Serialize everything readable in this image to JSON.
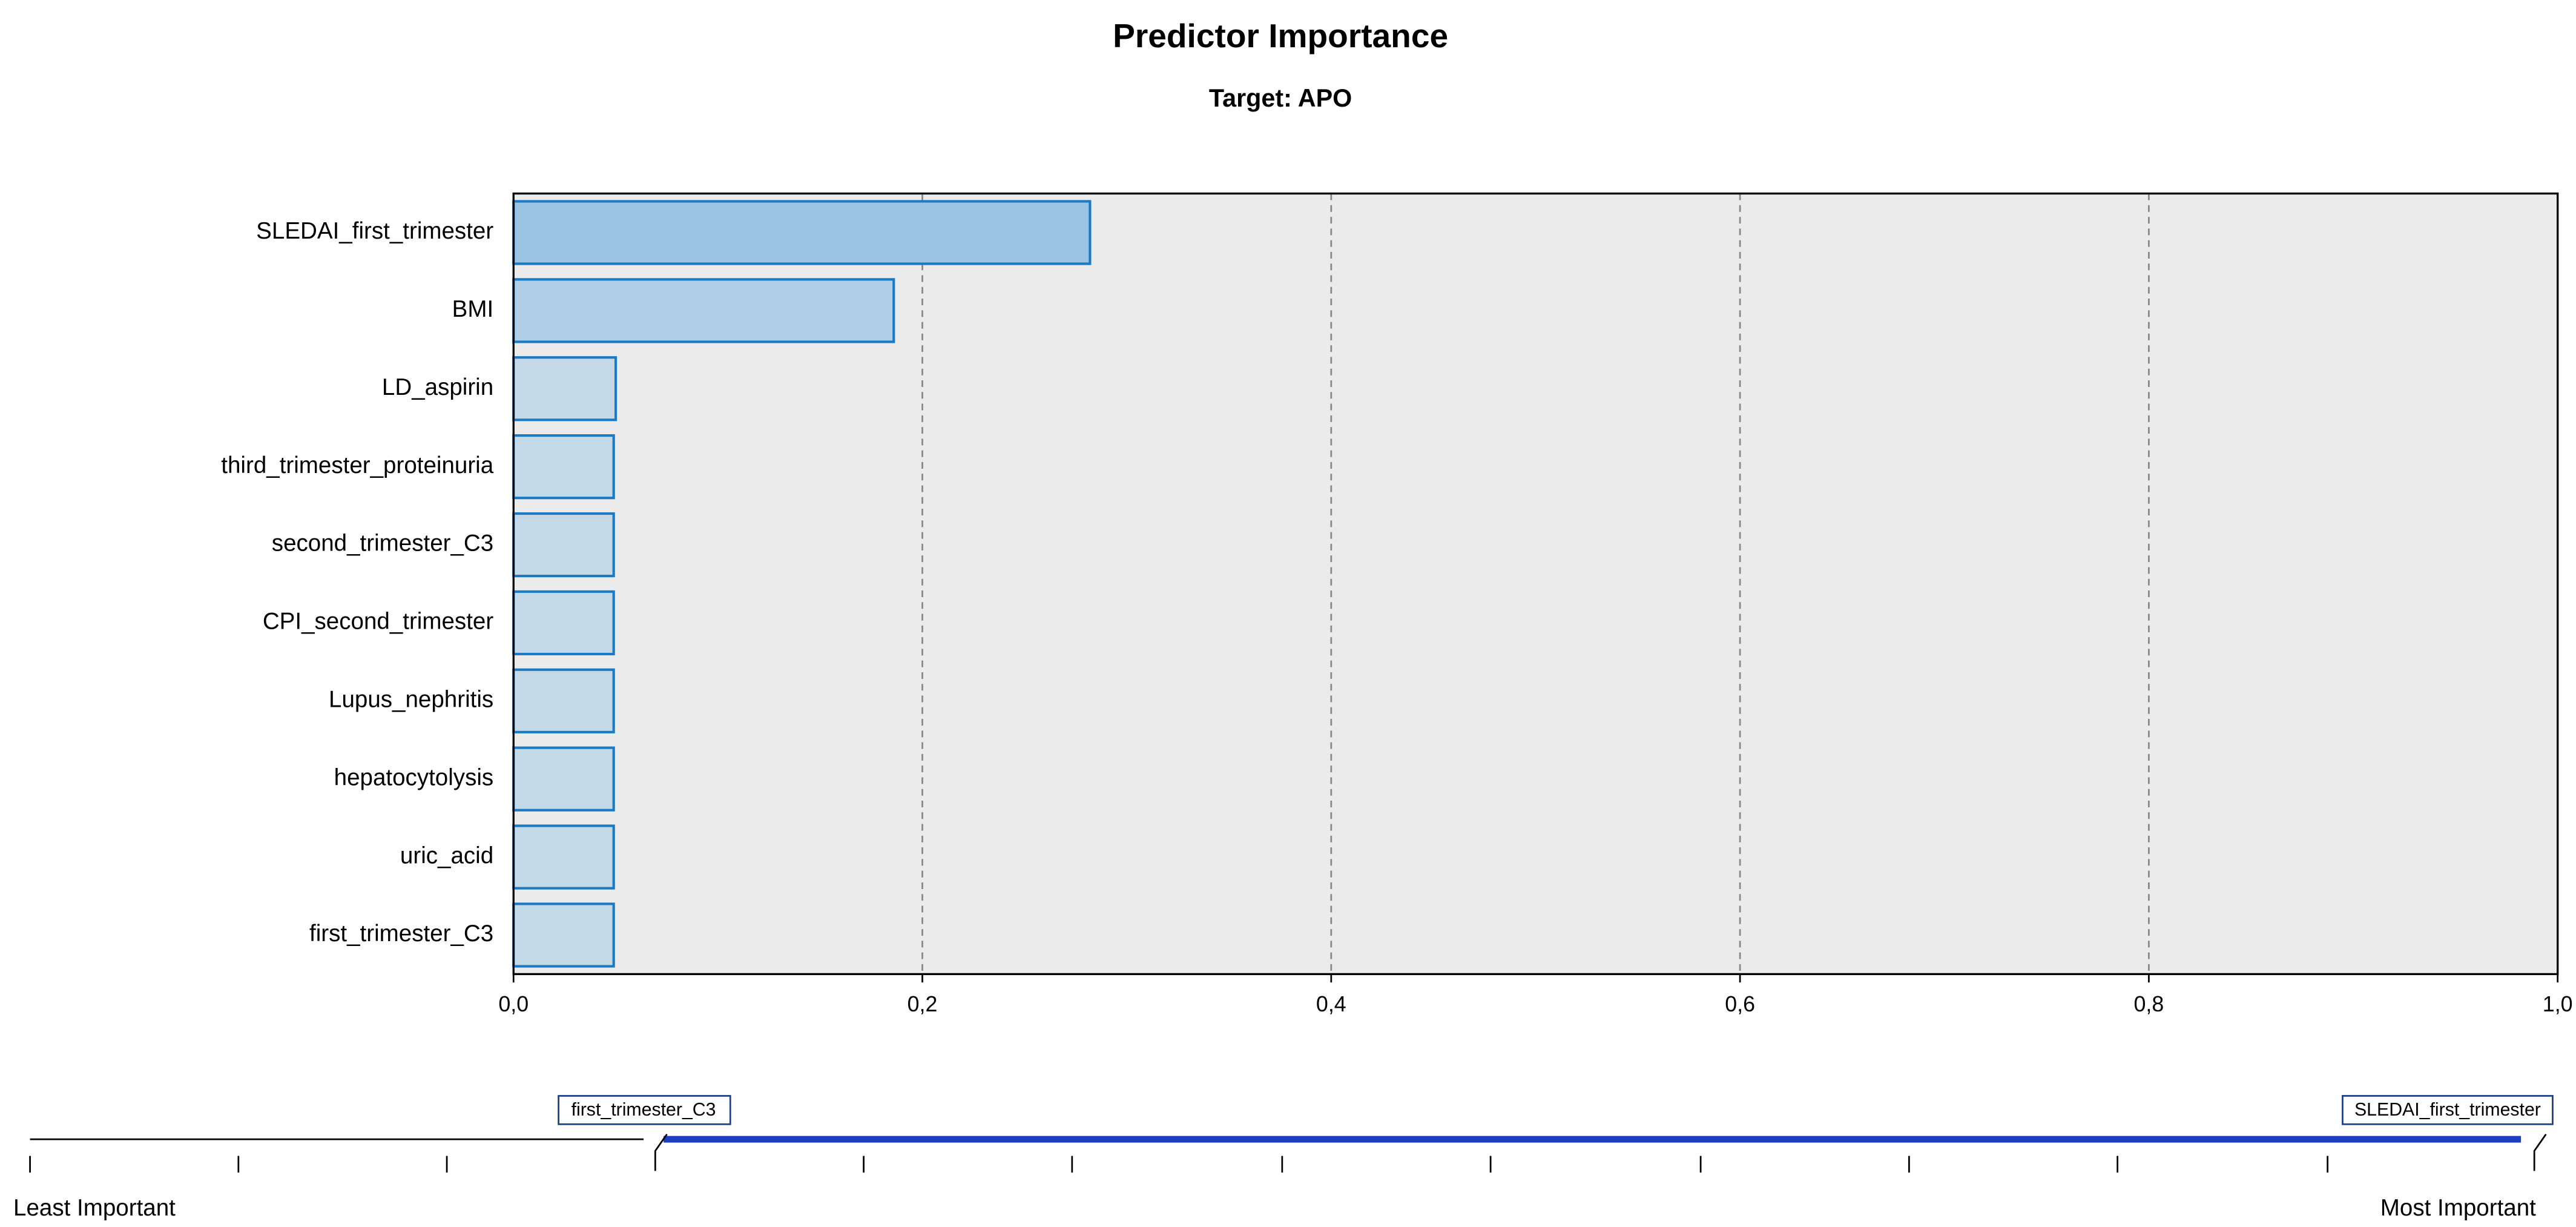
{
  "chart_data": {
    "type": "barh",
    "title": "Predictor Importance",
    "subtitle": "Target: APO",
    "categories": [
      "SLEDAI_first_trimester",
      "BMI",
      "LD_aspirin",
      "third_trimester_proteinuria",
      "second_trimester_C3",
      "CPI_second_trimester",
      "Lupus_nephritis",
      "hepatocytolysis",
      "uric_acid",
      "first_trimester_C3"
    ],
    "values": [
      0.282,
      0.186,
      0.05,
      0.049,
      0.049,
      0.049,
      0.049,
      0.049,
      0.049,
      0.049
    ],
    "colors": [
      "#9dc3e2",
      "#afcfe7",
      "#c3d9e8",
      "#c3d9e8",
      "#c3d9e8",
      "#c3d9e8",
      "#c3d9e8",
      "#c3d9e8",
      "#c3d9e8",
      "#c3d9e8"
    ],
    "edge_color": "#1a7ac4",
    "xlim": [
      0,
      1
    ],
    "xticks": [
      {
        "value": 0,
        "label": "0,0"
      },
      {
        "value": 0.2,
        "label": "0,2"
      },
      {
        "value": 0.4,
        "label": "0,4"
      },
      {
        "value": 0.6,
        "label": "0,6"
      },
      {
        "value": 0.8,
        "label": "0,8"
      },
      {
        "value": 1,
        "label": "1,0"
      }
    ],
    "grid": true,
    "slider": {
      "low_marker": "first_trimester_C3",
      "high_marker": "SLEDAI_first_trimester",
      "left_label": "Least Important",
      "right_label": "Most Important"
    }
  }
}
